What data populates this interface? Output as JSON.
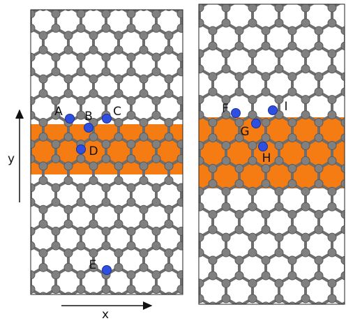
{
  "panels": [
    {
      "atom_labels": [
        "A",
        "B",
        "C",
        "D",
        "E"
      ]
    },
    {
      "atom_labels": [
        "F",
        "G",
        "H",
        "I"
      ]
    }
  ],
  "axes": {
    "x": "x",
    "y": "y"
  }
}
